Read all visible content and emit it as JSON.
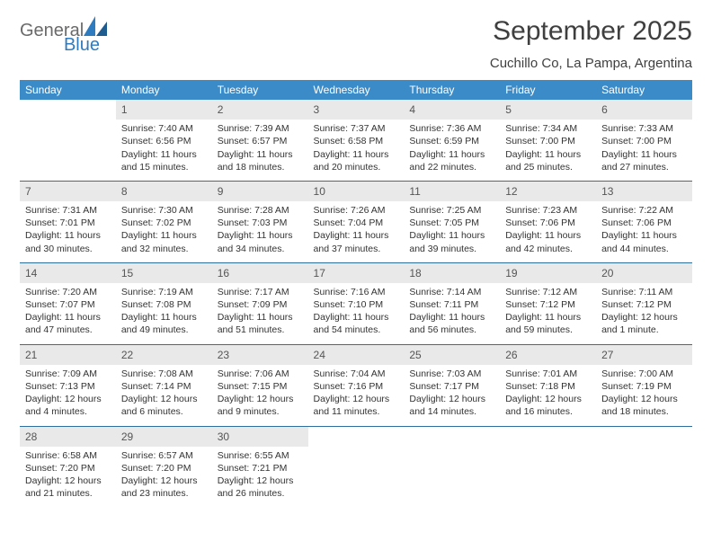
{
  "brand": {
    "general": "General",
    "blue": "Blue"
  },
  "title": "September 2025",
  "location": "Cuchillo Co, La Pampa, Argentina",
  "colors": {
    "header_bg": "#3b8bc9",
    "header_text": "#ffffff",
    "daynum_bg": "#e9e9e9",
    "separator": "#2f6fa0",
    "text": "#333333",
    "logo_gray": "#6a6a6a",
    "logo_blue": "#2f7bbf",
    "page_bg": "#ffffff"
  },
  "fonts": {
    "title_size_pt": 22,
    "subtitle_size_pt": 11,
    "header_size_pt": 9,
    "cell_size_pt": 8
  },
  "layout": {
    "columns": 7,
    "rows": 5
  },
  "day_headers": [
    "Sunday",
    "Monday",
    "Tuesday",
    "Wednesday",
    "Thursday",
    "Friday",
    "Saturday"
  ],
  "weeks": [
    [
      null,
      {
        "n": "1",
        "sr": "Sunrise: 7:40 AM",
        "ss": "Sunset: 6:56 PM",
        "d1": "Daylight: 11 hours",
        "d2": "and 15 minutes."
      },
      {
        "n": "2",
        "sr": "Sunrise: 7:39 AM",
        "ss": "Sunset: 6:57 PM",
        "d1": "Daylight: 11 hours",
        "d2": "and 18 minutes."
      },
      {
        "n": "3",
        "sr": "Sunrise: 7:37 AM",
        "ss": "Sunset: 6:58 PM",
        "d1": "Daylight: 11 hours",
        "d2": "and 20 minutes."
      },
      {
        "n": "4",
        "sr": "Sunrise: 7:36 AM",
        "ss": "Sunset: 6:59 PM",
        "d1": "Daylight: 11 hours",
        "d2": "and 22 minutes."
      },
      {
        "n": "5",
        "sr": "Sunrise: 7:34 AM",
        "ss": "Sunset: 7:00 PM",
        "d1": "Daylight: 11 hours",
        "d2": "and 25 minutes."
      },
      {
        "n": "6",
        "sr": "Sunrise: 7:33 AM",
        "ss": "Sunset: 7:00 PM",
        "d1": "Daylight: 11 hours",
        "d2": "and 27 minutes."
      }
    ],
    [
      {
        "n": "7",
        "sr": "Sunrise: 7:31 AM",
        "ss": "Sunset: 7:01 PM",
        "d1": "Daylight: 11 hours",
        "d2": "and 30 minutes."
      },
      {
        "n": "8",
        "sr": "Sunrise: 7:30 AM",
        "ss": "Sunset: 7:02 PM",
        "d1": "Daylight: 11 hours",
        "d2": "and 32 minutes."
      },
      {
        "n": "9",
        "sr": "Sunrise: 7:28 AM",
        "ss": "Sunset: 7:03 PM",
        "d1": "Daylight: 11 hours",
        "d2": "and 34 minutes."
      },
      {
        "n": "10",
        "sr": "Sunrise: 7:26 AM",
        "ss": "Sunset: 7:04 PM",
        "d1": "Daylight: 11 hours",
        "d2": "and 37 minutes."
      },
      {
        "n": "11",
        "sr": "Sunrise: 7:25 AM",
        "ss": "Sunset: 7:05 PM",
        "d1": "Daylight: 11 hours",
        "d2": "and 39 minutes."
      },
      {
        "n": "12",
        "sr": "Sunrise: 7:23 AM",
        "ss": "Sunset: 7:06 PM",
        "d1": "Daylight: 11 hours",
        "d2": "and 42 minutes."
      },
      {
        "n": "13",
        "sr": "Sunrise: 7:22 AM",
        "ss": "Sunset: 7:06 PM",
        "d1": "Daylight: 11 hours",
        "d2": "and 44 minutes."
      }
    ],
    [
      {
        "n": "14",
        "sr": "Sunrise: 7:20 AM",
        "ss": "Sunset: 7:07 PM",
        "d1": "Daylight: 11 hours",
        "d2": "and 47 minutes."
      },
      {
        "n": "15",
        "sr": "Sunrise: 7:19 AM",
        "ss": "Sunset: 7:08 PM",
        "d1": "Daylight: 11 hours",
        "d2": "and 49 minutes."
      },
      {
        "n": "16",
        "sr": "Sunrise: 7:17 AM",
        "ss": "Sunset: 7:09 PM",
        "d1": "Daylight: 11 hours",
        "d2": "and 51 minutes."
      },
      {
        "n": "17",
        "sr": "Sunrise: 7:16 AM",
        "ss": "Sunset: 7:10 PM",
        "d1": "Daylight: 11 hours",
        "d2": "and 54 minutes."
      },
      {
        "n": "18",
        "sr": "Sunrise: 7:14 AM",
        "ss": "Sunset: 7:11 PM",
        "d1": "Daylight: 11 hours",
        "d2": "and 56 minutes."
      },
      {
        "n": "19",
        "sr": "Sunrise: 7:12 AM",
        "ss": "Sunset: 7:12 PM",
        "d1": "Daylight: 11 hours",
        "d2": "and 59 minutes."
      },
      {
        "n": "20",
        "sr": "Sunrise: 7:11 AM",
        "ss": "Sunset: 7:12 PM",
        "d1": "Daylight: 12 hours",
        "d2": "and 1 minute."
      }
    ],
    [
      {
        "n": "21",
        "sr": "Sunrise: 7:09 AM",
        "ss": "Sunset: 7:13 PM",
        "d1": "Daylight: 12 hours",
        "d2": "and 4 minutes."
      },
      {
        "n": "22",
        "sr": "Sunrise: 7:08 AM",
        "ss": "Sunset: 7:14 PM",
        "d1": "Daylight: 12 hours",
        "d2": "and 6 minutes."
      },
      {
        "n": "23",
        "sr": "Sunrise: 7:06 AM",
        "ss": "Sunset: 7:15 PM",
        "d1": "Daylight: 12 hours",
        "d2": "and 9 minutes."
      },
      {
        "n": "24",
        "sr": "Sunrise: 7:04 AM",
        "ss": "Sunset: 7:16 PM",
        "d1": "Daylight: 12 hours",
        "d2": "and 11 minutes."
      },
      {
        "n": "25",
        "sr": "Sunrise: 7:03 AM",
        "ss": "Sunset: 7:17 PM",
        "d1": "Daylight: 12 hours",
        "d2": "and 14 minutes."
      },
      {
        "n": "26",
        "sr": "Sunrise: 7:01 AM",
        "ss": "Sunset: 7:18 PM",
        "d1": "Daylight: 12 hours",
        "d2": "and 16 minutes."
      },
      {
        "n": "27",
        "sr": "Sunrise: 7:00 AM",
        "ss": "Sunset: 7:19 PM",
        "d1": "Daylight: 12 hours",
        "d2": "and 18 minutes."
      }
    ],
    [
      {
        "n": "28",
        "sr": "Sunrise: 6:58 AM",
        "ss": "Sunset: 7:20 PM",
        "d1": "Daylight: 12 hours",
        "d2": "and 21 minutes."
      },
      {
        "n": "29",
        "sr": "Sunrise: 6:57 AM",
        "ss": "Sunset: 7:20 PM",
        "d1": "Daylight: 12 hours",
        "d2": "and 23 minutes."
      },
      {
        "n": "30",
        "sr": "Sunrise: 6:55 AM",
        "ss": "Sunset: 7:21 PM",
        "d1": "Daylight: 12 hours",
        "d2": "and 26 minutes."
      },
      null,
      null,
      null,
      null
    ]
  ]
}
